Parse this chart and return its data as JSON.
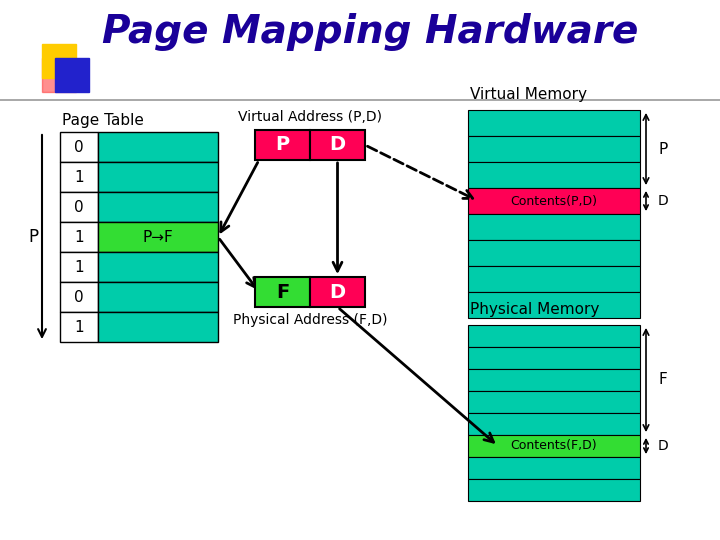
{
  "title": "Page Mapping Hardware",
  "title_color": "#1a0099",
  "bg_color": "#ffffff",
  "cyan": "#00ccaa",
  "magenta": "#ff0055",
  "green": "#33dd33",
  "page_table_rows": [
    "0",
    "1",
    "0",
    "1",
    "1",
    "0",
    "1"
  ],
  "page_table_highlight_row": 3,
  "ptf_label": "P→F",
  "virtual_address_label": "Virtual Address (P,D)",
  "physical_address_label": "Physical Address (F,D)",
  "virtual_memory_label": "Virtual Memory",
  "physical_memory_label": "Physical Memory",
  "page_table_label": "Page Table",
  "p_label": "P",
  "f_label": "F",
  "d_label": "D",
  "contents_pd": "Contents(P,D)",
  "contents_fd": "Contents(F,D)"
}
